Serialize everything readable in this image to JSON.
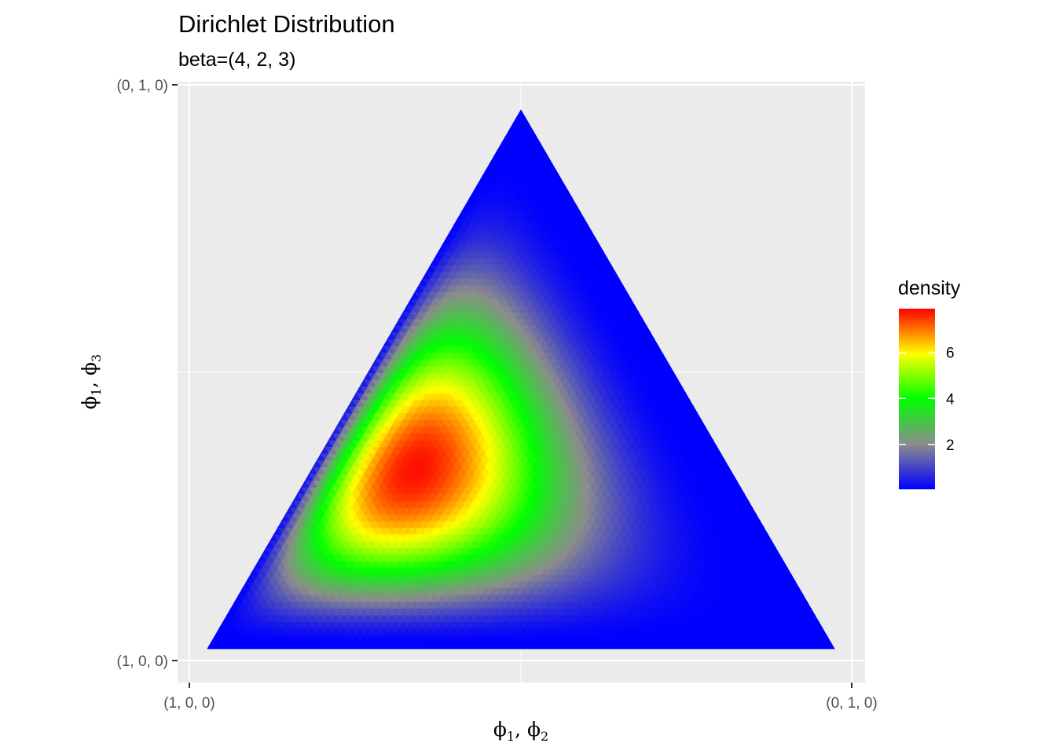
{
  "chart_data": {
    "type": "heatmap",
    "title": "Dirichlet Distribution",
    "subtitle": "beta=(4, 2, 3)",
    "beta": [
      4,
      2,
      3
    ],
    "xlabel": {
      "base": "ϕ",
      "sub1": "1",
      "sep": ", ",
      "sub2": "2"
    },
    "ylabel": {
      "base": "ϕ",
      "sub1": "1",
      "sep": ", ",
      "sub2": "3"
    },
    "x_ticks": [
      "(1, 0, 0)",
      "(0, 1, 0)"
    ],
    "y_ticks": [
      "(1, 0, 0)",
      "(0, 1, 0)"
    ],
    "vertices": {
      "left": "(1, 0, 0)",
      "right": "(0, 1, 0)",
      "top": "(0, 0, 1)"
    },
    "colors": {
      "panel_bg": "#ebebeb",
      "grid": "#ffffff",
      "stops": [
        "#0000ff",
        "#8c8c8c",
        "#00ff00",
        "#ffff00",
        "#ff0000"
      ]
    },
    "legend": {
      "title": "density",
      "position": "right",
      "range": [
        0.05,
        7.9
      ],
      "breaks": [
        2,
        4,
        6
      ],
      "labels": [
        "2",
        "4",
        "6"
      ]
    }
  }
}
